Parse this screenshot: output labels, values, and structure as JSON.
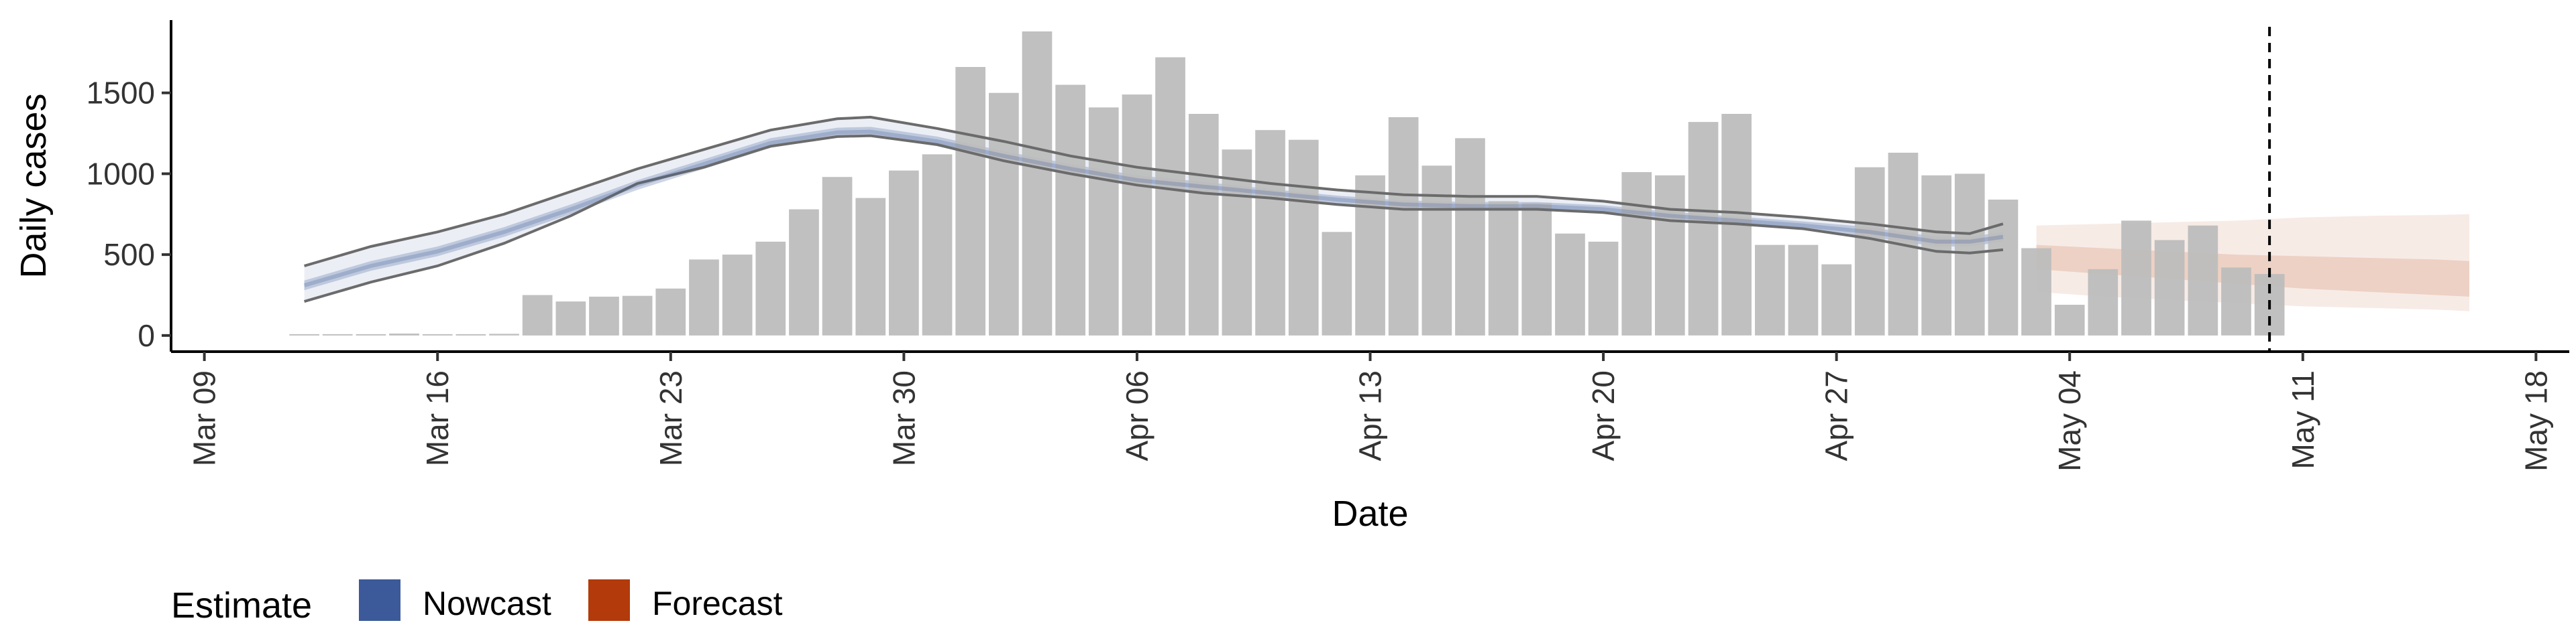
{
  "chart_data": {
    "type": "bar",
    "ylabel": "Daily cases",
    "xlabel": "Date",
    "ylim": [
      -100,
      1950
    ],
    "y_ticks": [
      0,
      500,
      1000,
      1500
    ],
    "y_tick_labels": [
      "0",
      "500",
      "1000",
      "1500"
    ],
    "x_domain": [
      "2020-03-08",
      "2020-05-19"
    ],
    "x_ticks": [
      "2020-03-09",
      "2020-03-16",
      "2020-03-23",
      "2020-03-30",
      "2020-04-06",
      "2020-04-13",
      "2020-04-20",
      "2020-04-27",
      "2020-05-04",
      "2020-05-11",
      "2020-05-18"
    ],
    "x_tick_labels": [
      "Mar 09",
      "Mar 16",
      "Mar 23",
      "Mar 30",
      "Apr 06",
      "Apr 13",
      "Apr 20",
      "Apr 27",
      "May 04",
      "May 11",
      "May 18"
    ],
    "grid": false,
    "bar_color": "#BDBDBD",
    "bars": {
      "x": [
        "2020-03-12",
        "2020-03-13",
        "2020-03-14",
        "2020-03-15",
        "2020-03-16",
        "2020-03-17",
        "2020-03-18",
        "2020-03-19",
        "2020-03-20",
        "2020-03-21",
        "2020-03-22",
        "2020-03-23",
        "2020-03-24",
        "2020-03-25",
        "2020-03-26",
        "2020-03-27",
        "2020-03-28",
        "2020-03-29",
        "2020-03-30",
        "2020-03-31",
        "2020-04-01",
        "2020-04-02",
        "2020-04-03",
        "2020-04-04",
        "2020-04-05",
        "2020-04-06",
        "2020-04-07",
        "2020-04-08",
        "2020-04-09",
        "2020-04-10",
        "2020-04-11",
        "2020-04-12",
        "2020-04-13",
        "2020-04-14",
        "2020-04-15",
        "2020-04-16",
        "2020-04-17",
        "2020-04-18",
        "2020-04-19",
        "2020-04-20",
        "2020-04-21",
        "2020-04-22",
        "2020-04-23",
        "2020-04-24",
        "2020-04-25",
        "2020-04-26",
        "2020-04-27",
        "2020-04-28",
        "2020-04-29",
        "2020-04-30",
        "2020-05-01",
        "2020-05-02",
        "2020-05-03",
        "2020-05-04",
        "2020-05-05",
        "2020-05-06",
        "2020-05-07",
        "2020-05-08",
        "2020-05-09",
        "2020-05-10"
      ],
      "values": [
        5,
        7,
        6,
        12,
        0,
        8,
        10,
        250,
        210,
        240,
        245,
        290,
        470,
        500,
        580,
        780,
        980,
        850,
        1020,
        1120,
        1660,
        1500,
        1880,
        1550,
        1410,
        1490,
        1720,
        1370,
        1150,
        1270,
        1210,
        640,
        990,
        1350,
        1050,
        1220,
        830,
        820,
        630,
        580,
        1010,
        990,
        1320,
        1370,
        560,
        560,
        440,
        1040,
        1130,
        990,
        1000,
        840,
        540,
        190,
        410,
        710,
        590,
        680,
        420,
        380
      ]
    },
    "series": [
      {
        "name": "Nowcast",
        "color": "#3C5A99",
        "x": [
          "2020-03-12",
          "2020-03-14",
          "2020-03-16",
          "2020-03-18",
          "2020-03-20",
          "2020-03-22",
          "2020-03-24",
          "2020-03-26",
          "2020-03-28",
          "2020-03-29",
          "2020-03-31",
          "2020-04-02",
          "2020-04-04",
          "2020-04-06",
          "2020-04-08",
          "2020-04-10",
          "2020-04-12",
          "2020-04-14",
          "2020-04-16",
          "2020-04-18",
          "2020-04-20",
          "2020-04-22",
          "2020-04-24",
          "2020-04-26",
          "2020-04-28",
          "2020-04-30",
          "2020-05-01",
          "2020-05-02"
        ],
        "median": [
          310,
          430,
          520,
          640,
          780,
          930,
          1060,
          1190,
          1255,
          1260,
          1200,
          1110,
          1030,
          960,
          920,
          880,
          840,
          810,
          800,
          800,
          780,
          740,
          710,
          680,
          640,
          580,
          580,
          610
        ],
        "inner_lower": [
          280,
          400,
          490,
          610,
          750,
          900,
          1030,
          1160,
          1225,
          1230,
          1170,
          1080,
          1000,
          930,
          890,
          855,
          815,
          785,
          775,
          775,
          755,
          715,
          685,
          655,
          610,
          550,
          550,
          580
        ],
        "inner_upper": [
          340,
          460,
          550,
          670,
          810,
          960,
          1090,
          1220,
          1285,
          1290,
          1230,
          1140,
          1060,
          990,
          950,
          905,
          865,
          835,
          825,
          825,
          805,
          765,
          735,
          705,
          670,
          610,
          610,
          640
        ],
        "lower": [
          210,
          330,
          430,
          570,
          740,
          940,
          1040,
          1170,
          1230,
          1235,
          1180,
          1080,
          1000,
          930,
          880,
          850,
          810,
          780,
          780,
          780,
          760,
          710,
          690,
          660,
          600,
          520,
          510,
          530
        ],
        "upper": [
          430,
          550,
          640,
          750,
          890,
          1030,
          1150,
          1270,
          1340,
          1350,
          1280,
          1200,
          1110,
          1040,
          990,
          940,
          900,
          870,
          860,
          860,
          830,
          780,
          760,
          730,
          690,
          640,
          630,
          690
        ]
      },
      {
        "name": "Forecast",
        "color": "#B33A0A",
        "x": [
          "2020-05-03",
          "2020-05-05",
          "2020-05-07",
          "2020-05-09",
          "2020-05-11",
          "2020-05-13",
          "2020-05-15",
          "2020-05-16"
        ],
        "median": [
          450,
          420,
          400,
          380,
          360,
          340,
          320,
          310
        ],
        "inner_lower": [
          410,
          380,
          350,
          320,
          290,
          270,
          250,
          240
        ],
        "inner_upper": [
          560,
          540,
          520,
          500,
          490,
          480,
          470,
          460
        ],
        "lower": [
          270,
          240,
          220,
          200,
          180,
          170,
          160,
          150
        ],
        "upper": [
          680,
          690,
          700,
          710,
          730,
          740,
          745,
          750
        ]
      }
    ],
    "annotations": [
      {
        "type": "vline",
        "x": "2020-05-10",
        "style": "dashed",
        "color": "#000000"
      }
    ],
    "legend": {
      "title": "Estimate",
      "position": "bottom-left",
      "items": [
        {
          "label": "Nowcast",
          "color": "#3C5A99"
        },
        {
          "label": "Forecast",
          "color": "#B33A0A"
        }
      ]
    }
  }
}
